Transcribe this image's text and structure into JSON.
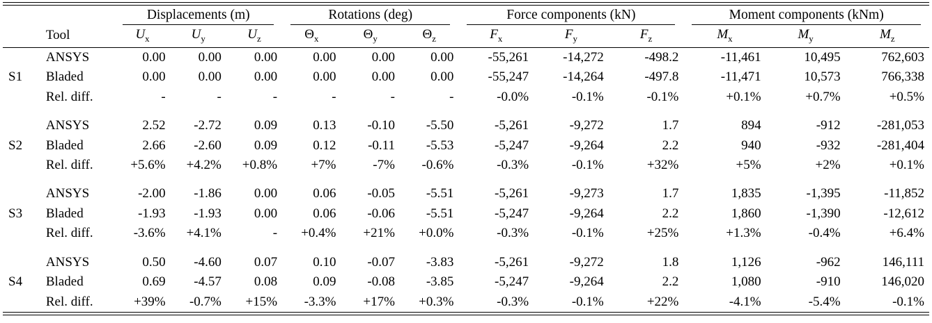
{
  "table": {
    "tool_header": "Tool",
    "groups": [
      {
        "label": "Displacements (m)"
      },
      {
        "label": "Rotations (deg)"
      },
      {
        "label": "Force components (kN)"
      },
      {
        "label": "Moment components (kNm)"
      }
    ],
    "columns": [
      {
        "base": "U",
        "sub": "x"
      },
      {
        "base": "U",
        "sub": "y"
      },
      {
        "base": "U",
        "sub": "z"
      },
      {
        "base": "Θ",
        "sub": "x"
      },
      {
        "base": "Θ",
        "sub": "y"
      },
      {
        "base": "Θ",
        "sub": "z"
      },
      {
        "base": "F",
        "sub": "x"
      },
      {
        "base": "F",
        "sub": "y"
      },
      {
        "base": "F",
        "sub": "z"
      },
      {
        "base": "M",
        "sub": "x"
      },
      {
        "base": "M",
        "sub": "y"
      },
      {
        "base": "M",
        "sub": "z"
      }
    ],
    "sections": [
      {
        "label": "S1",
        "rows": [
          {
            "tool": "ANSYS",
            "values": [
              "0.00",
              "0.00",
              "0.00",
              "0.00",
              "0.00",
              "0.00",
              "-55,261",
              "-14,272",
              "-498.2",
              "-11,461",
              "10,495",
              "762,603"
            ]
          },
          {
            "tool": "Bladed",
            "values": [
              "0.00",
              "0.00",
              "0.00",
              "0.00",
              "0.00",
              "0.00",
              "-55,247",
              "-14,264",
              "-497.8",
              "-11,471",
              "10,573",
              "766,338"
            ]
          },
          {
            "tool": "Rel. diff.",
            "values": [
              "-",
              "-",
              "-",
              "-",
              "-",
              "-",
              "-0.0%",
              "-0.1%",
              "-0.1%",
              "+0.1%",
              "+0.7%",
              "+0.5%"
            ]
          }
        ]
      },
      {
        "label": "S2",
        "rows": [
          {
            "tool": "ANSYS",
            "values": [
              "2.52",
              "-2.72",
              "0.09",
              "0.13",
              "-0.10",
              "-5.50",
              "-5,261",
              "-9,272",
              "1.7",
              "894",
              "-912",
              "-281,053"
            ]
          },
          {
            "tool": "Bladed",
            "values": [
              "2.66",
              "-2.60",
              "0.09",
              "0.12",
              "-0.11",
              "-5.53",
              "-5,247",
              "-9,264",
              "2.2",
              "940",
              "-932",
              "-281,404"
            ]
          },
          {
            "tool": "Rel. diff.",
            "values": [
              "+5.6%",
              "+4.2%",
              "+0.8%",
              "+7%",
              "-7%",
              "-0.6%",
              "-0.3%",
              "-0.1%",
              "+32%",
              "+5%",
              "+2%",
              "+0.1%"
            ]
          }
        ]
      },
      {
        "label": "S3",
        "rows": [
          {
            "tool": "ANSYS",
            "values": [
              "-2.00",
              "-1.86",
              "0.00",
              "0.06",
              "-0.05",
              "-5.51",
              "-5,261",
              "-9,273",
              "1.7",
              "1,835",
              "-1,395",
              "-11,852"
            ]
          },
          {
            "tool": "Bladed",
            "values": [
              "-1.93",
              "-1.93",
              "0.00",
              "0.06",
              "-0.06",
              "-5.51",
              "-5,247",
              "-9,264",
              "2.2",
              "1,860",
              "-1,390",
              "-12,612"
            ]
          },
          {
            "tool": "Rel. diff.",
            "values": [
              "-3.6%",
              "+4.1%",
              "-",
              "+0.4%",
              "+21%",
              "+0.0%",
              "-0.3%",
              "-0.1%",
              "+25%",
              "+1.3%",
              "-0.4%",
              "+6.4%"
            ]
          }
        ]
      },
      {
        "label": "S4",
        "rows": [
          {
            "tool": "ANSYS",
            "values": [
              "0.50",
              "-4.60",
              "0.07",
              "0.10",
              "-0.07",
              "-3.83",
              "-5,261",
              "-9,272",
              "1.8",
              "1,126",
              "-962",
              "146,111"
            ]
          },
          {
            "tool": "Bladed",
            "values": [
              "0.69",
              "-4.57",
              "0.08",
              "0.09",
              "-0.08",
              "-3.85",
              "-5,247",
              "-9,264",
              "2.2",
              "1,080",
              "-910",
              "146,020"
            ]
          },
          {
            "tool": "Rel. diff.",
            "values": [
              "+39%",
              "-0.7%",
              "+15%",
              "-3.3%",
              "+17%",
              "+0.3%",
              "-0.3%",
              "-0.1%",
              "+22%",
              "-4.1%",
              "-5.4%",
              "-0.1%"
            ]
          }
        ]
      }
    ]
  }
}
